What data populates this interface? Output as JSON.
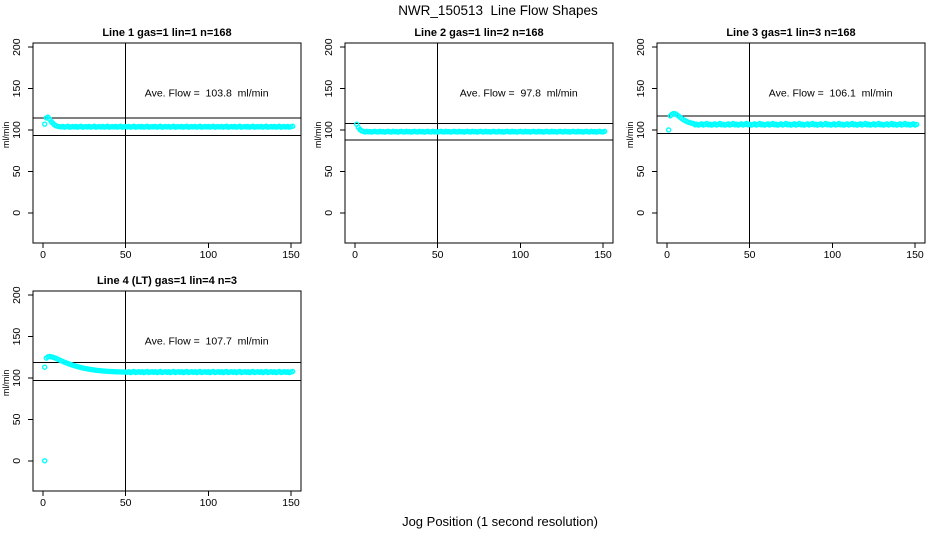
{
  "page": {
    "title": "NWR_150513  Line Flow Shapes",
    "xlabel": "Jog Position (1 second resolution)"
  },
  "colors": {
    "points": "#00FFFF",
    "axis": "#000000",
    "background": "#FFFFFF",
    "text": "#000000"
  },
  "chart_data": [
    {
      "type": "scatter",
      "title": "Line 1 gas=1 lin=1 n=168",
      "ylabel": "ml/min",
      "marker": "open-circle",
      "ave_flow": {
        "label": "Ave. Flow =",
        "value": "103.8",
        "unit": "ml/min"
      },
      "xlim": [
        -6,
        156
      ],
      "ylim": [
        -36.5,
        205
      ],
      "xticks": [
        0,
        50,
        100,
        150
      ],
      "yticks": [
        0,
        50,
        100,
        150,
        200
      ],
      "vline_x": 50,
      "hlines": [
        114.2,
        93.4
      ],
      "x_start": 1,
      "y": [
        107,
        114.5,
        115.5,
        113,
        110,
        108,
        106,
        105,
        104.3,
        104,
        103.6,
        104.2,
        103.4,
        103.9,
        104.5,
        103.3,
        103.8,
        104.1,
        103.6,
        104.2,
        103.4,
        103.9,
        104.5,
        103.3,
        103.8,
        104.1,
        103.6,
        104.2,
        103.4,
        103.9,
        104.5,
        103.3,
        103.8,
        104.1,
        103.6,
        104.2,
        103.4,
        103.9,
        104.5,
        103.3,
        103.8,
        104.1,
        103.6,
        104.2,
        103.4,
        103.9,
        104.5,
        103.3,
        103.8,
        104.1,
        103.6,
        104.2,
        103.4,
        103.9,
        104.5,
        103.3,
        103.8,
        104.1,
        103.6,
        104.2,
        103.4,
        103.9,
        104.5,
        103.3,
        103.8,
        104.1,
        103.6,
        104.2,
        103.4,
        103.9,
        104.5,
        103.3,
        103.8,
        104.1,
        103.6,
        104.2,
        103.4,
        103.9,
        104.5,
        103.3,
        103.8,
        104.1,
        103.6,
        104.2,
        103.4,
        103.9,
        104.5,
        103.3,
        103.8,
        104.1,
        103.6,
        104.2,
        103.4,
        103.9,
        104.5,
        103.3,
        103.8,
        104.1,
        103.6,
        104.2,
        103.4,
        103.9,
        104.5,
        103.3,
        103.8,
        104.1,
        103.6,
        104.2,
        103.4,
        103.9,
        104.5,
        103.3,
        103.8,
        104.1,
        103.6,
        104.2,
        103.4,
        103.9,
        104.5,
        103.3,
        103.8,
        104.1,
        103.6,
        104.2,
        103.4,
        103.9,
        104.5,
        103.3,
        103.8,
        104.1,
        103.6,
        104.2,
        103.4,
        103.9,
        104.5,
        103.3,
        103.8,
        104.1,
        103.6,
        104.2,
        103.4,
        103.9,
        104.5,
        103.3,
        103.8,
        104.1,
        103.6,
        104.2,
        103.4,
        103.9,
        104.5
      ],
      "extra_points": []
    },
    {
      "type": "scatter",
      "title": "Line 2 gas=1 lin=2 n=168",
      "ylabel": "ml/min",
      "marker": "open-circle",
      "ave_flow": {
        "label": "Ave. Flow =",
        "value": "97.8",
        "unit": "ml/min"
      },
      "xlim": [
        -6,
        156
      ],
      "ylim": [
        -36.5,
        205
      ],
      "xticks": [
        0,
        50,
        100,
        150
      ],
      "yticks": [
        0,
        50,
        100,
        150,
        200
      ],
      "vline_x": 50,
      "hlines": [
        107.6,
        88.0
      ],
      "x_start": 1,
      "y": [
        107,
        103,
        100.5,
        99,
        98.3,
        97.6,
        98.3,
        97.8,
        98.1,
        97.4,
        98.0,
        98.4,
        97.7,
        97.6,
        98.3,
        97.8,
        98.1,
        97.4,
        98.0,
        98.4,
        97.7,
        97.6,
        98.3,
        97.8,
        98.1,
        97.4,
        98.0,
        98.4,
        97.7,
        97.6,
        98.3,
        97.8,
        98.1,
        97.4,
        98.0,
        98.4,
        97.7,
        97.6,
        98.3,
        97.8,
        98.1,
        97.4,
        98.0,
        98.4,
        97.7,
        97.6,
        98.3,
        97.8,
        98.1,
        97.4,
        98.0,
        98.4,
        97.7,
        97.6,
        98.3,
        97.8,
        98.1,
        97.4,
        98.0,
        98.4,
        97.7,
        97.6,
        98.3,
        97.8,
        98.1,
        97.4,
        98.0,
        98.4,
        97.7,
        97.6,
        98.3,
        97.8,
        98.1,
        97.4,
        98.0,
        98.4,
        97.7,
        97.6,
        98.3,
        97.8,
        98.1,
        97.4,
        98.0,
        98.4,
        97.7,
        97.6,
        98.3,
        97.8,
        98.1,
        97.4,
        98.0,
        98.4,
        97.7,
        97.6,
        98.3,
        97.8,
        98.1,
        97.4,
        98.0,
        98.4,
        97.7,
        97.6,
        98.3,
        97.8,
        98.1,
        97.4,
        98.0,
        98.4,
        97.7,
        97.6,
        98.3,
        97.8,
        98.1,
        97.4,
        98.0,
        98.4,
        97.7,
        97.6,
        98.3,
        97.8,
        98.1,
        97.4,
        98.0,
        98.4,
        97.7,
        97.6,
        98.3,
        97.8,
        98.1,
        97.4,
        98.0,
        98.4,
        97.7,
        97.6,
        98.3,
        97.8,
        98.1,
        97.4,
        98.0,
        98.4,
        97.7,
        97.6,
        98.3,
        97.8,
        98.1,
        97.4,
        98.0,
        98.4,
        97.7,
        97.6,
        98.3
      ],
      "extra_points": []
    },
    {
      "type": "scatter",
      "title": "Line 3 gas=1 lin=3 n=168",
      "ylabel": "ml/min",
      "marker": "open-circle",
      "ave_flow": {
        "label": "Ave. Flow =",
        "value": "106.1",
        "unit": "ml/min"
      },
      "xlim": [
        -6,
        156
      ],
      "ylim": [
        -36.5,
        205
      ],
      "xticks": [
        0,
        50,
        100,
        150
      ],
      "yticks": [
        0,
        50,
        100,
        150,
        200
      ],
      "vline_x": 50,
      "hlines": [
        116.7,
        95.5
      ],
      "x_start": 1,
      "y": [
        100,
        117,
        119,
        120,
        119.5,
        118.3,
        116.8,
        115.2,
        113.7,
        112.3,
        111.2,
        110.2,
        109.4,
        108.7,
        108.2,
        107.8,
        106.2,
        107.0,
        105.9,
        106.6,
        107.4,
        106.0,
        106.7,
        107.9,
        106.2,
        107.0,
        105.9,
        106.6,
        107.4,
        106.0,
        106.7,
        107.9,
        106.2,
        107.0,
        105.9,
        106.6,
        107.4,
        106.0,
        106.7,
        107.9,
        106.2,
        107.0,
        105.9,
        106.6,
        107.4,
        106.0,
        106.7,
        107.9,
        106.2,
        107.0,
        105.9,
        106.6,
        107.4,
        106.0,
        106.7,
        107.9,
        106.2,
        107.0,
        105.9,
        106.6,
        107.4,
        106.0,
        106.7,
        107.9,
        106.2,
        107.0,
        105.9,
        106.6,
        107.4,
        106.0,
        106.7,
        107.9,
        106.2,
        107.0,
        105.9,
        106.6,
        107.4,
        106.0,
        106.7,
        107.9,
        106.2,
        107.0,
        105.9,
        106.6,
        107.4,
        106.0,
        106.7,
        107.9,
        106.2,
        107.0,
        105.9,
        106.6,
        107.4,
        106.0,
        106.7,
        107.9,
        106.2,
        107.0,
        105.9,
        106.6,
        107.4,
        106.0,
        106.7,
        107.9,
        106.2,
        107.0,
        105.9,
        106.6,
        107.4,
        106.0,
        106.7,
        107.9,
        106.2,
        107.0,
        105.9,
        106.6,
        107.4,
        106.0,
        106.7,
        107.9,
        106.2,
        107.0,
        105.9,
        106.6,
        107.4,
        106.0,
        106.7,
        107.9,
        106.2,
        107.0,
        105.9,
        106.6,
        107.4,
        106.0,
        106.7,
        107.9,
        106.2,
        107.0,
        105.9,
        106.6,
        107.4,
        106.0,
        106.7,
        107.9,
        106.2,
        107.0,
        105.9,
        106.6,
        107.4,
        106.0,
        106.7
      ],
      "extra_points": []
    },
    {
      "type": "scatter",
      "title": "Line 4 (LT) gas=1 lin=4 n=3",
      "ylabel": "ml/min",
      "marker": "open-circle",
      "ave_flow": {
        "label": "Ave. Flow =",
        "value": "107.7",
        "unit": "ml/min"
      },
      "xlim": [
        -6,
        156
      ],
      "ylim": [
        -36.5,
        205
      ],
      "xticks": [
        0,
        50,
        100,
        150
      ],
      "yticks": [
        0,
        50,
        100,
        150,
        200
      ],
      "vline_x": 50,
      "hlines": [
        118.5,
        96.9
      ],
      "x_start": 1,
      "y": [
        113,
        124,
        125.5,
        126,
        125.5,
        125,
        124.3,
        123.5,
        122.6,
        121.7,
        120.8,
        119.9,
        119.1,
        118.3,
        117.5,
        116.8,
        116.1,
        115.4,
        114.8,
        114.2,
        113.6,
        113.1,
        112.6,
        112.1,
        111.7,
        111.3,
        110.9,
        110.5,
        110.2,
        109.9,
        109.6,
        109.3,
        109.1,
        108.9,
        108.7,
        108.5,
        108.3,
        108.2,
        108.0,
        107.9,
        107.8,
        107.7,
        107.6,
        107.5,
        107.4,
        107.4,
        107.3,
        107.2,
        107.2,
        107.1,
        106.8,
        107.5,
        106.5,
        107.2,
        107.8,
        106.6,
        107.1,
        107.6,
        106.8,
        107.5,
        106.5,
        107.2,
        107.8,
        106.6,
        107.1,
        107.6,
        106.8,
        107.5,
        106.5,
        107.2,
        107.8,
        106.6,
        107.1,
        107.6,
        106.8,
        107.5,
        106.5,
        107.2,
        107.8,
        106.6,
        107.1,
        107.6,
        106.8,
        107.5,
        106.5,
        107.2,
        107.8,
        106.6,
        107.1,
        107.6,
        106.8,
        107.5,
        106.5,
        107.2,
        107.8,
        106.6,
        107.1,
        107.6,
        106.8,
        107.5,
        106.5,
        107.2,
        107.8,
        106.6,
        107.1,
        107.6,
        106.8,
        107.5,
        106.5,
        107.2,
        107.8,
        106.6,
        107.1,
        107.6,
        106.8,
        107.5,
        106.5,
        107.2,
        107.8,
        106.6,
        107.1,
        107.6,
        106.8,
        107.5,
        106.5,
        107.2,
        107.8,
        106.6,
        107.1,
        107.6,
        106.8,
        107.5,
        106.5,
        107.2,
        107.8,
        106.6,
        107.1,
        107.6,
        106.8,
        107.5,
        106.5,
        107.2,
        107.8,
        106.6,
        107.1,
        107.6,
        106.8,
        107.5,
        106.5,
        107.2,
        107.8
      ],
      "extra_points": [
        [
          1,
          0
        ]
      ]
    }
  ]
}
